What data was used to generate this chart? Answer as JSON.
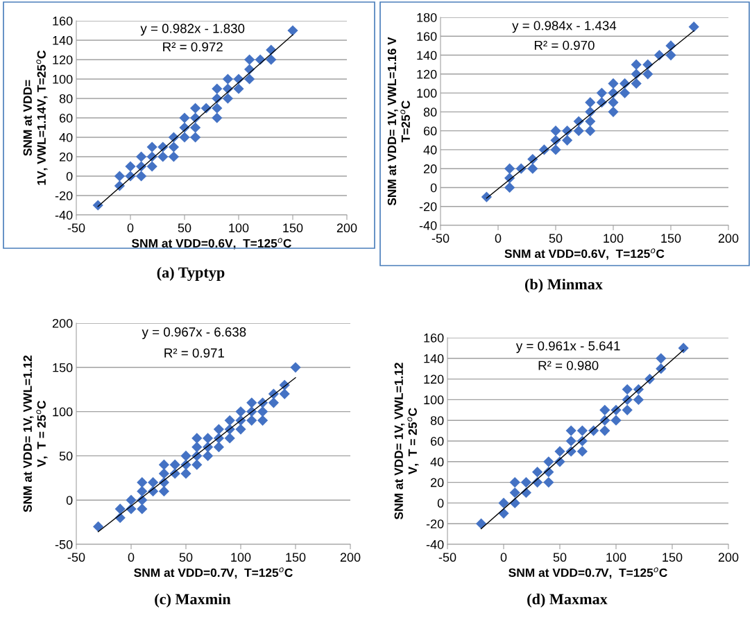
{
  "chart_data": [
    {
      "type": "scatter",
      "xlabel": "SNM at VDD=0.6V,  T=125$^{o}$C",
      "ylabel": "SNM at VDD=\n1V, VWL=1.14V, T=25$^{o}$C",
      "annotations": [
        "y = 0.982x - 1.830",
        "R² = 0.972",
        "(a) Typtyp"
      ],
      "xlim": [
        -50,
        200
      ],
      "ylim": [
        -40,
        160
      ],
      "xticks": [
        -50,
        0,
        50,
        100,
        150,
        200
      ],
      "yticks": [
        -40,
        -20,
        0,
        20,
        40,
        60,
        80,
        100,
        120,
        140,
        160
      ],
      "grid": "y",
      "series": [
        {
          "marker": "diamond",
          "color": "#4472c4",
          "x": [
            -30,
            -10,
            -10,
            0,
            0,
            10,
            10,
            10,
            20,
            20,
            20,
            30,
            30,
            40,
            40,
            40,
            50,
            50,
            50,
            60,
            60,
            60,
            60,
            70,
            80,
            80,
            80,
            80,
            90,
            90,
            90,
            100,
            100,
            110,
            110,
            110,
            120,
            130,
            130,
            150
          ],
          "values": [
            -30,
            -10,
            0,
            0,
            10,
            0,
            10,
            20,
            10,
            20,
            30,
            20,
            30,
            20,
            30,
            40,
            40,
            50,
            60,
            40,
            50,
            60,
            70,
            70,
            60,
            70,
            80,
            90,
            80,
            90,
            100,
            90,
            100,
            100,
            110,
            120,
            120,
            120,
            130,
            150
          ]
        },
        {
          "type": "line",
          "color": "#000000",
          "x": [
            -30,
            150
          ],
          "values": [
            -31.3,
            145.5
          ]
        }
      ]
    },
    {
      "type": "scatter",
      "xlabel": "SNM at VDD=0.6V,  T=125$^{o}$C",
      "ylabel": "SNM at VDD= 1V, VWL=1.16 V\nT=25$^{o}$C",
      "annotations": [
        "y = 0.984x - 1.434",
        "R² = 0.970",
        "(b) Minmax"
      ],
      "xlim": [
        -50,
        200
      ],
      "ylim": [
        -40,
        180
      ],
      "xticks": [
        -50,
        0,
        50,
        100,
        150,
        200
      ],
      "yticks": [
        -40,
        -20,
        0,
        20,
        40,
        60,
        80,
        100,
        120,
        140,
        160,
        180
      ],
      "grid": "y",
      "series": [
        {
          "marker": "diamond",
          "color": "#4472c4",
          "x": [
            -10,
            10,
            10,
            10,
            20,
            30,
            30,
            40,
            50,
            50,
            50,
            60,
            60,
            70,
            70,
            80,
            80,
            80,
            80,
            90,
            90,
            100,
            100,
            100,
            100,
            110,
            110,
            120,
            120,
            120,
            130,
            130,
            140,
            150,
            150,
            170
          ],
          "values": [
            -10,
            0,
            10,
            20,
            20,
            20,
            30,
            40,
            40,
            50,
            60,
            50,
            60,
            60,
            70,
            60,
            70,
            80,
            90,
            90,
            100,
            80,
            90,
            100,
            110,
            100,
            110,
            110,
            120,
            130,
            120,
            130,
            140,
            140,
            150,
            170
          ]
        },
        {
          "type": "line",
          "color": "#000000",
          "x": [
            -10,
            170
          ],
          "values": [
            -11.3,
            165.8
          ]
        }
      ]
    },
    {
      "type": "scatter",
      "xlabel": "SNM at VDD=0.7V,  T=125$^{o}$C",
      "ylabel": "SNM at VDD= 1V, VWL=1.12\nV,  T = 25$^{o}$C",
      "annotations": [
        "y = 0.967x - 6.638",
        "R² = 0.971",
        "(c) Maxmin"
      ],
      "xlim": [
        -50,
        200
      ],
      "ylim": [
        -50,
        200
      ],
      "xticks": [
        -50,
        0,
        50,
        100,
        150,
        200
      ],
      "yticks": [
        -50,
        0,
        50,
        100,
        150,
        200
      ],
      "grid": "y",
      "series": [
        {
          "marker": "diamond",
          "color": "#4472c4",
          "x": [
            -30,
            -10,
            -10,
            0,
            0,
            10,
            10,
            10,
            10,
            20,
            20,
            30,
            30,
            30,
            30,
            40,
            40,
            50,
            50,
            50,
            60,
            60,
            60,
            60,
            70,
            70,
            70,
            80,
            80,
            80,
            90,
            90,
            90,
            100,
            100,
            100,
            110,
            110,
            110,
            120,
            120,
            120,
            130,
            130,
            140,
            140,
            150
          ],
          "values": [
            -30,
            -10,
            -20,
            0,
            -10,
            -10,
            0,
            10,
            20,
            10,
            20,
            10,
            20,
            30,
            40,
            30,
            40,
            30,
            40,
            50,
            40,
            50,
            60,
            70,
            50,
            60,
            70,
            60,
            70,
            80,
            70,
            80,
            90,
            80,
            90,
            100,
            90,
            100,
            110,
            90,
            100,
            110,
            110,
            120,
            120,
            130,
            150
          ]
        },
        {
          "type": "line",
          "color": "#000000",
          "x": [
            -30,
            150
          ],
          "values": [
            -35.7,
            138.4
          ]
        }
      ]
    },
    {
      "type": "scatter",
      "xlabel": "SNM at VDD=0.7V,  T=125$^{o}$C",
      "ylabel": "SNM at VDD= 1V, VWL=1.12\nV,  T = 25$^{o}$C",
      "annotations": [
        "y = 0.961x - 5.641",
        "R² = 0.980",
        "(d) Maxmax"
      ],
      "xlim": [
        -50,
        200
      ],
      "ylim": [
        -40,
        160
      ],
      "xticks": [
        -50,
        0,
        50,
        100,
        150,
        200
      ],
      "yticks": [
        -40,
        -20,
        0,
        20,
        40,
        60,
        80,
        100,
        120,
        140,
        160
      ],
      "grid": "y",
      "series": [
        {
          "marker": "diamond",
          "color": "#4472c4",
          "x": [
            -20,
            0,
            0,
            10,
            10,
            10,
            20,
            20,
            30,
            30,
            40,
            40,
            40,
            50,
            50,
            60,
            60,
            60,
            70,
            70,
            70,
            80,
            90,
            90,
            90,
            100,
            100,
            110,
            110,
            110,
            120,
            120,
            130,
            140,
            140,
            160
          ],
          "values": [
            -20,
            0,
            -10,
            0,
            10,
            20,
            10,
            20,
            20,
            30,
            20,
            30,
            40,
            40,
            50,
            50,
            60,
            70,
            50,
            60,
            70,
            70,
            70,
            80,
            90,
            80,
            90,
            90,
            100,
            110,
            100,
            110,
            120,
            130,
            140,
            150
          ]
        },
        {
          "type": "line",
          "color": "#000000",
          "x": [
            -20,
            160
          ],
          "values": [
            -24.9,
            148.1
          ]
        }
      ]
    }
  ]
}
